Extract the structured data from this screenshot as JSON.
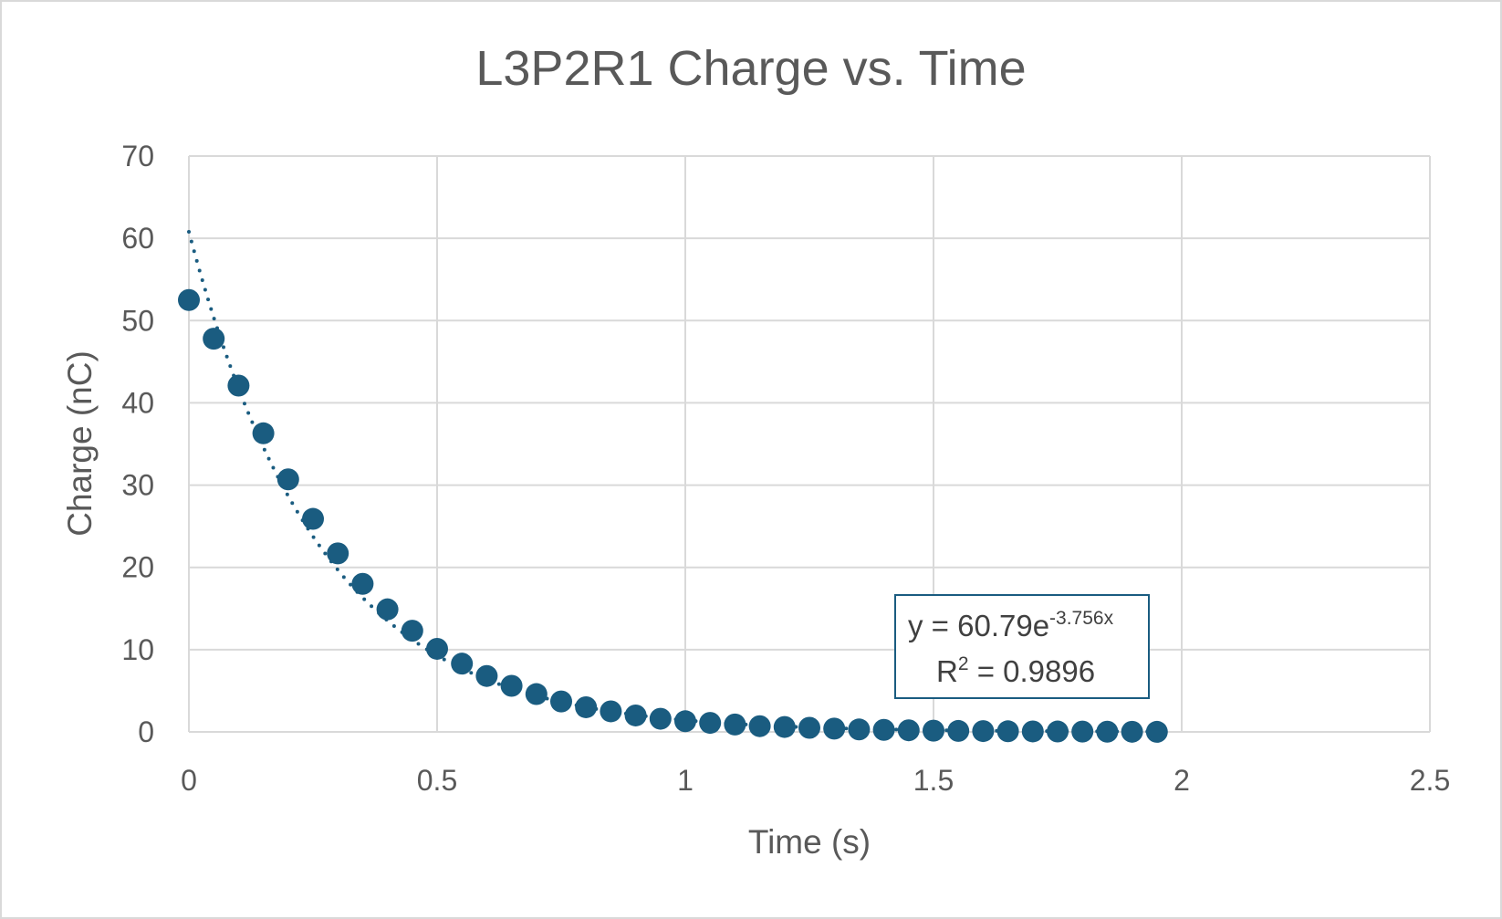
{
  "chart_data": {
    "type": "scatter",
    "title": "L3P2R1 Charge vs. Time",
    "xlabel": "Time (s)",
    "ylabel": "Charge (nC)",
    "xlim": [
      0,
      2.5
    ],
    "ylim": [
      0,
      70
    ],
    "x_ticks": [
      "0",
      "0.5",
      "1",
      "1.5",
      "2",
      "2.5"
    ],
    "y_ticks": [
      "0",
      "10",
      "20",
      "30",
      "40",
      "50",
      "60",
      "70"
    ],
    "grid": true,
    "legend": "none",
    "marker_color": "#1a5c80",
    "trendline": {
      "type": "exponential",
      "a": 60.79,
      "b": -3.756,
      "equation_prefix": "y = 60.79e",
      "equation_exponent": "-3.756x",
      "r2_prefix": "R",
      "r2_exponent": "2",
      "r2_suffix": " = 0.9896",
      "style": "dotted"
    },
    "series": [
      {
        "x": [
          0,
          0.05,
          0.1,
          0.15,
          0.2,
          0.25,
          0.3,
          0.35,
          0.4,
          0.45,
          0.5,
          0.55,
          0.6,
          0.65,
          0.7,
          0.75,
          0.8,
          0.85,
          0.9,
          0.95,
          1.0,
          1.05,
          1.1,
          1.15,
          1.2,
          1.25,
          1.3,
          1.35,
          1.4,
          1.45,
          1.5,
          1.55,
          1.6,
          1.65,
          1.7,
          1.75,
          1.8,
          1.85,
          1.9,
          1.95
        ],
        "y": [
          52.5,
          47.8,
          42.1,
          36.3,
          30.7,
          25.9,
          21.7,
          18.0,
          14.9,
          12.3,
          10.1,
          8.3,
          6.8,
          5.6,
          4.6,
          3.7,
          3.0,
          2.5,
          2.0,
          1.6,
          1.3,
          1.1,
          0.9,
          0.7,
          0.6,
          0.5,
          0.4,
          0.3,
          0.25,
          0.2,
          0.15,
          0.12,
          0.1,
          0.08,
          0.06,
          0.05,
          0.04,
          0.03,
          0.02,
          0.01
        ]
      }
    ]
  }
}
